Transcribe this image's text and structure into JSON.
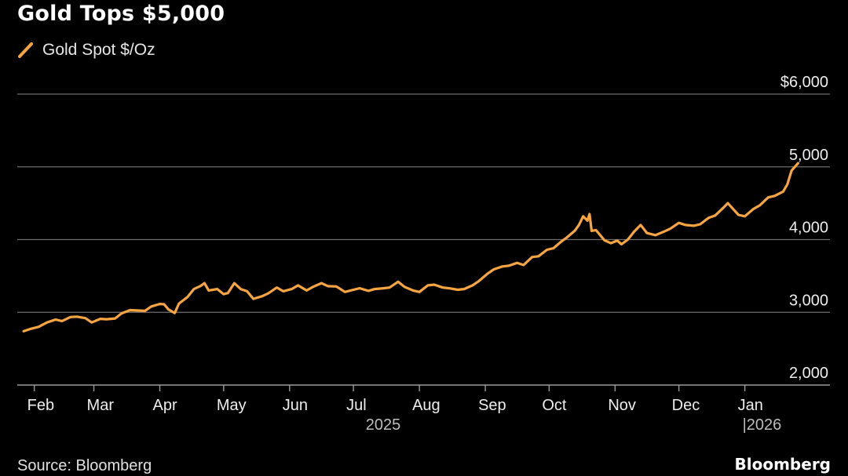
{
  "chart_data": {
    "type": "line",
    "title": "Gold Tops $5,000",
    "source": "Source: Bloomberg",
    "brand": "Bloomberg",
    "legend_placement": "top-left",
    "grid": true,
    "series": [
      {
        "name": "Gold Spot $/Oz",
        "color": "#f7a541",
        "points": [
          [
            "2025-01-27",
            2740
          ],
          [
            "2025-01-30",
            2770
          ],
          [
            "2025-02-03",
            2800
          ],
          [
            "2025-02-07",
            2860
          ],
          [
            "2025-02-11",
            2900
          ],
          [
            "2025-02-14",
            2880
          ],
          [
            "2025-02-18",
            2935
          ],
          [
            "2025-02-21",
            2940
          ],
          [
            "2025-02-25",
            2920
          ],
          [
            "2025-02-28",
            2860
          ],
          [
            "2025-03-04",
            2910
          ],
          [
            "2025-03-07",
            2905
          ],
          [
            "2025-03-11",
            2915
          ],
          [
            "2025-03-14",
            2985
          ],
          [
            "2025-03-18",
            3030
          ],
          [
            "2025-03-21",
            3025
          ],
          [
            "2025-03-25",
            3020
          ],
          [
            "2025-03-28",
            3080
          ],
          [
            "2025-04-01",
            3115
          ],
          [
            "2025-04-03",
            3110
          ],
          [
            "2025-04-05",
            3040
          ],
          [
            "2025-04-08",
            2990
          ],
          [
            "2025-04-10",
            3120
          ],
          [
            "2025-04-14",
            3210
          ],
          [
            "2025-04-17",
            3320
          ],
          [
            "2025-04-20",
            3360
          ],
          [
            "2025-04-22",
            3400
          ],
          [
            "2025-04-24",
            3300
          ],
          [
            "2025-04-28",
            3320
          ],
          [
            "2025-05-01",
            3250
          ],
          [
            "2025-05-03",
            3265
          ],
          [
            "2025-05-06",
            3400
          ],
          [
            "2025-05-09",
            3320
          ],
          [
            "2025-05-12",
            3290
          ],
          [
            "2025-05-15",
            3185
          ],
          [
            "2025-05-19",
            3220
          ],
          [
            "2025-05-22",
            3260
          ],
          [
            "2025-05-26",
            3340
          ],
          [
            "2025-05-29",
            3290
          ],
          [
            "2025-06-02",
            3320
          ],
          [
            "2025-06-05",
            3370
          ],
          [
            "2025-06-09",
            3300
          ],
          [
            "2025-06-12",
            3350
          ],
          [
            "2025-06-16",
            3400
          ],
          [
            "2025-06-19",
            3360
          ],
          [
            "2025-06-23",
            3355
          ],
          [
            "2025-06-27",
            3280
          ],
          [
            "2025-07-01",
            3310
          ],
          [
            "2025-07-04",
            3330
          ],
          [
            "2025-07-08",
            3295
          ],
          [
            "2025-07-11",
            3320
          ],
          [
            "2025-07-15",
            3330
          ],
          [
            "2025-07-18",
            3340
          ],
          [
            "2025-07-22",
            3420
          ],
          [
            "2025-07-25",
            3350
          ],
          [
            "2025-07-29",
            3300
          ],
          [
            "2025-08-01",
            3280
          ],
          [
            "2025-08-05",
            3370
          ],
          [
            "2025-08-08",
            3380
          ],
          [
            "2025-08-12",
            3340
          ],
          [
            "2025-08-15",
            3330
          ],
          [
            "2025-08-19",
            3310
          ],
          [
            "2025-08-22",
            3320
          ],
          [
            "2025-08-26",
            3370
          ],
          [
            "2025-08-29",
            3430
          ],
          [
            "2025-09-02",
            3530
          ],
          [
            "2025-09-05",
            3590
          ],
          [
            "2025-09-09",
            3630
          ],
          [
            "2025-09-12",
            3640
          ],
          [
            "2025-09-16",
            3680
          ],
          [
            "2025-09-19",
            3650
          ],
          [
            "2025-09-23",
            3760
          ],
          [
            "2025-09-26",
            3770
          ],
          [
            "2025-09-30",
            3860
          ],
          [
            "2025-10-03",
            3880
          ],
          [
            "2025-10-07",
            3980
          ],
          [
            "2025-10-09",
            4020
          ],
          [
            "2025-10-13",
            4120
          ],
          [
            "2025-10-15",
            4200
          ],
          [
            "2025-10-17",
            4320
          ],
          [
            "2025-10-19",
            4260
          ],
          [
            "2025-10-20",
            4350
          ],
          [
            "2025-10-21",
            4120
          ],
          [
            "2025-10-23",
            4130
          ],
          [
            "2025-10-27",
            3990
          ],
          [
            "2025-10-30",
            3950
          ],
          [
            "2025-11-02",
            3985
          ],
          [
            "2025-11-04",
            3935
          ],
          [
            "2025-11-07",
            4000
          ],
          [
            "2025-11-10",
            4110
          ],
          [
            "2025-11-13",
            4200
          ],
          [
            "2025-11-16",
            4090
          ],
          [
            "2025-11-20",
            4060
          ],
          [
            "2025-11-24",
            4110
          ],
          [
            "2025-11-27",
            4150
          ],
          [
            "2025-12-01",
            4230
          ],
          [
            "2025-12-04",
            4200
          ],
          [
            "2025-12-08",
            4190
          ],
          [
            "2025-12-11",
            4210
          ],
          [
            "2025-12-15",
            4300
          ],
          [
            "2025-12-18",
            4330
          ],
          [
            "2025-12-22",
            4440
          ],
          [
            "2025-12-24",
            4500
          ],
          [
            "2025-12-29",
            4340
          ],
          [
            "2026-01-01",
            4320
          ],
          [
            "2026-01-05",
            4420
          ],
          [
            "2026-01-08",
            4470
          ],
          [
            "2026-01-12",
            4580
          ],
          [
            "2026-01-15",
            4600
          ],
          [
            "2026-01-19",
            4660
          ],
          [
            "2026-01-21",
            4760
          ],
          [
            "2026-01-23",
            4950
          ],
          [
            "2026-01-26",
            5050
          ]
        ]
      }
    ],
    "y_axis": {
      "min": 2000,
      "max": 6000,
      "ticks": [
        {
          "value": 2000,
          "label": "2,000"
        },
        {
          "value": 3000,
          "label": "3,000"
        },
        {
          "value": 4000,
          "label": "4,000"
        },
        {
          "value": 5000,
          "label": "5,000"
        },
        {
          "value": 6000,
          "label": "$6,000"
        }
      ]
    },
    "x_axis": {
      "range": [
        "2025-01-24",
        "2026-02-10"
      ],
      "ticks": [
        {
          "date": "2025-02-01",
          "label": "Feb"
        },
        {
          "date": "2025-03-01",
          "label": "Mar"
        },
        {
          "date": "2025-04-01",
          "label": "Apr"
        },
        {
          "date": "2025-05-01",
          "label": "May"
        },
        {
          "date": "2025-06-01",
          "label": "Jun"
        },
        {
          "date": "2025-07-01",
          "label": "Jul"
        },
        {
          "date": "2025-08-01",
          "label": "Aug"
        },
        {
          "date": "2025-09-01",
          "label": "Sep"
        },
        {
          "date": "2025-10-01",
          "label": "Oct"
        },
        {
          "date": "2025-11-01",
          "label": "Nov"
        },
        {
          "date": "2025-12-01",
          "label": "Dec"
        },
        {
          "date": "2026-01-01",
          "label": "Jan"
        }
      ],
      "year_labels": [
        {
          "date": "2025-07-15",
          "label": "2025"
        },
        {
          "date": "2026-01-01",
          "label": "|2026"
        }
      ]
    }
  }
}
